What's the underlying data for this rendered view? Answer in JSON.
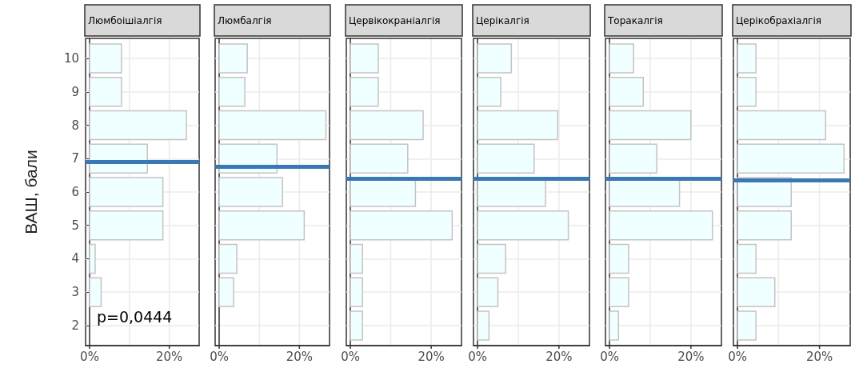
{
  "chart_data": [
    {
      "type": "bar",
      "orientation": "horizontal",
      "title": "Люмбоішіалгія",
      "ylabel": "ВАШ, бали",
      "annotations": [
        "p=0,0444"
      ],
      "x": [
        10,
        9,
        8,
        7,
        6,
        5,
        4,
        3,
        2
      ],
      "values": [
        8.0,
        8.0,
        24.3,
        14.5,
        18.4,
        18.4,
        1.4,
        2.9,
        0
      ],
      "color": "#f0ffff",
      "xlim": [
        -1,
        27.5
      ],
      "xticks": [
        {
          "value": 0,
          "label": "0%"
        },
        {
          "value": 10,
          "label": null
        },
        {
          "value": 20,
          "label": "20%"
        }
      ],
      "ylim": [
        1.4,
        10.6
      ],
      "yticks": [
        2,
        3,
        4,
        5,
        6,
        7,
        8,
        9,
        10
      ],
      "grid": true,
      "ref_lines": [
        {
          "axis": "y",
          "value": 6.9,
          "color": "#3a78b5"
        }
      ]
    },
    {
      "type": "bar",
      "orientation": "horizontal",
      "title": "Люмбалгія",
      "x": [
        10,
        9,
        8,
        7,
        6,
        5,
        4,
        3,
        2
      ],
      "values": [
        7.0,
        6.4,
        26.6,
        14.4,
        15.8,
        21.2,
        4.4,
        3.6,
        0
      ],
      "color": "#f0ffff",
      "xlim": [
        -1,
        27.5
      ],
      "xticks": [
        {
          "value": 0,
          "label": "0%"
        },
        {
          "value": 10,
          "label": null
        },
        {
          "value": 20,
          "label": "20%"
        }
      ],
      "ylim": [
        1.4,
        10.6
      ],
      "yticks": [
        2,
        3,
        4,
        5,
        6,
        7,
        8,
        9,
        10
      ],
      "tick_labels": "x",
      "grid": true,
      "ref_lines": [
        {
          "axis": "y",
          "value": 6.75,
          "color": "#3a78b5"
        }
      ]
    },
    {
      "type": "bar",
      "orientation": "horizontal",
      "title": "Цервікокраніалгія",
      "x": [
        10,
        9,
        8,
        7,
        6,
        5,
        4,
        3,
        2
      ],
      "values": [
        6.9,
        6.9,
        18.0,
        14.2,
        16.1,
        25.2,
        3.0,
        3.0,
        3.0
      ],
      "color": "#f0ffff",
      "xlim": [
        -1,
        27.5
      ],
      "xticks": [
        {
          "value": 0,
          "label": "0%"
        },
        {
          "value": 10,
          "label": null
        },
        {
          "value": 20,
          "label": "20%"
        }
      ],
      "ylim": [
        1.4,
        10.6
      ],
      "yticks": [
        2,
        3,
        4,
        5,
        6,
        7,
        8,
        9,
        10
      ],
      "tick_labels": "x",
      "grid": true,
      "ref_lines": [
        {
          "axis": "y",
          "value": 6.4,
          "color": "#3a78b5"
        }
      ]
    },
    {
      "type": "bar",
      "orientation": "horizontal",
      "title": "Церікалгія",
      "x": [
        10,
        9,
        8,
        7,
        6,
        5,
        4,
        3,
        2
      ],
      "values": [
        8.3,
        5.7,
        19.7,
        13.9,
        16.7,
        22.3,
        6.9,
        5.0,
        2.8
      ],
      "color": "#f0ffff",
      "xlim": [
        -1,
        27.5
      ],
      "xticks": [
        {
          "value": 0,
          "label": "0%"
        },
        {
          "value": 10,
          "label": null
        },
        {
          "value": 20,
          "label": "20%"
        }
      ],
      "ylim": [
        1.4,
        10.6
      ],
      "yticks": [
        2,
        3,
        4,
        5,
        6,
        7,
        8,
        9,
        10
      ],
      "tick_labels": "x",
      "grid": true,
      "ref_lines": [
        {
          "axis": "y",
          "value": 6.4,
          "color": "#3a78b5"
        }
      ]
    },
    {
      "type": "bar",
      "orientation": "horizontal",
      "title": "Торакалгія",
      "x": [
        10,
        9,
        8,
        7,
        6,
        5,
        4,
        3,
        2
      ],
      "values": [
        5.9,
        8.3,
        20.0,
        11.6,
        17.2,
        25.3,
        4.7,
        4.7,
        2.2
      ],
      "color": "#f0ffff",
      "xlim": [
        -1,
        27.5
      ],
      "xticks": [
        {
          "value": 0,
          "label": "0%"
        },
        {
          "value": 10,
          "label": null
        },
        {
          "value": 20,
          "label": "20%"
        }
      ],
      "ylim": [
        1.4,
        10.6
      ],
      "yticks": [
        2,
        3,
        4,
        5,
        6,
        7,
        8,
        9,
        10
      ],
      "tick_labels": "x",
      "grid": true,
      "ref_lines": [
        {
          "axis": "y",
          "value": 6.4,
          "color": "#3a78b5"
        }
      ]
    },
    {
      "type": "bar",
      "orientation": "horizontal",
      "title": "Церікобрахіалгія",
      "x": [
        10,
        9,
        8,
        7,
        6,
        5,
        4,
        3,
        2
      ],
      "values": [
        4.5,
        4.5,
        21.5,
        26.0,
        13.1,
        13.1,
        4.5,
        9.1,
        4.5
      ],
      "color": "#f0ffff",
      "xlim": [
        -1,
        27.5
      ],
      "xticks": [
        {
          "value": 0,
          "label": "0%"
        },
        {
          "value": 10,
          "label": null
        },
        {
          "value": 20,
          "label": "20%"
        }
      ],
      "ylim": [
        1.4,
        10.6
      ],
      "yticks": [
        2,
        3,
        4,
        5,
        6,
        7,
        8,
        9,
        10
      ],
      "tick_labels": "x",
      "grid": true,
      "ref_lines": [
        {
          "axis": "y",
          "value": 6.35,
          "color": "#3a78b5"
        }
      ]
    }
  ]
}
